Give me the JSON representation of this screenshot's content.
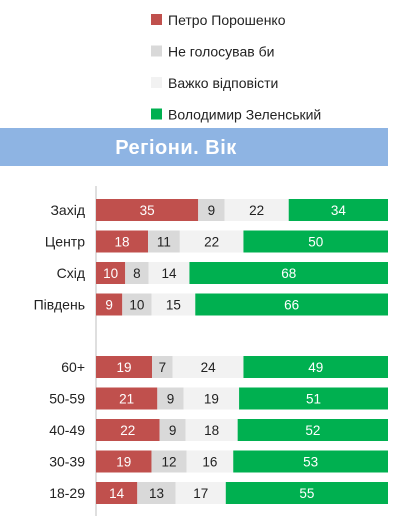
{
  "chart_data": {
    "type": "bar",
    "stacked": true,
    "orientation": "horizontal",
    "title": "Регіони. Вік",
    "legend_position": "top",
    "series": [
      {
        "name": "Петро Порошенко",
        "color": "#c0504d"
      },
      {
        "name": "Не голосував би",
        "color": "#d9d9d9"
      },
      {
        "name": "Важко відповісти",
        "color": "#f2f2f2"
      },
      {
        "name": "Володимир Зеленський",
        "color": "#00b050"
      }
    ],
    "groups": [
      {
        "rows": [
          {
            "category": "Захід",
            "values": [
              35,
              9,
              22,
              34
            ]
          },
          {
            "category": "Центр",
            "values": [
              18,
              11,
              22,
              50
            ]
          },
          {
            "category": "Схід",
            "values": [
              10,
              8,
              14,
              68
            ]
          },
          {
            "category": "Південь",
            "values": [
              9,
              10,
              15,
              66
            ]
          }
        ]
      },
      {
        "rows": [
          {
            "category": "60+",
            "values": [
              19,
              7,
              24,
              49
            ]
          },
          {
            "category": "50-59",
            "values": [
              21,
              9,
              19,
              51
            ]
          },
          {
            "category": "40-49",
            "values": [
              22,
              9,
              18,
              52
            ]
          },
          {
            "category": "30-39",
            "values": [
              19,
              12,
              16,
              53
            ]
          },
          {
            "category": "18-29",
            "values": [
              14,
              13,
              17,
              55
            ]
          }
        ]
      }
    ],
    "axis_range": [
      0,
      100
    ],
    "grid": false
  },
  "colors": {
    "title_band": "#8eb4e3",
    "label_on_dark": "#ffffff",
    "label_on_light": "#222222"
  }
}
